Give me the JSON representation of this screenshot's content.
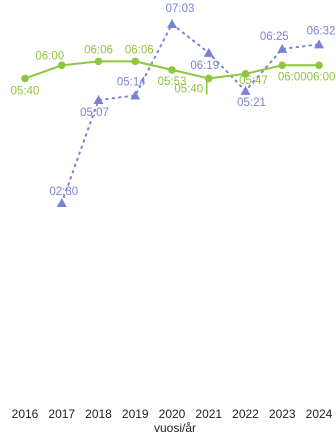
{
  "chart_data": {
    "type": "line",
    "xlabel": "vuosi/år",
    "ylabel": "",
    "categories": [
      "2016",
      "2017",
      "2018",
      "2019",
      "2020",
      "2021",
      "2022",
      "2023",
      "2024"
    ],
    "y_unit": "time (hh:mm)",
    "ylim": [
      "01:00",
      "07:30"
    ],
    "grid": false,
    "series": [
      {
        "style": "solid line with circle markers",
        "color": "#8dc63f",
        "values": [
          "05:40",
          "06:00",
          "06:06",
          "06:06",
          "05:53",
          "05:40",
          "05:47",
          "06:00",
          "06:00"
        ],
        "labels": [
          "05:40",
          "06:00",
          "06:06",
          "06:06",
          "05:53",
          "05:40",
          "05:47",
          "06:00",
          "06:00"
        ]
      },
      {
        "style": "dotted line with triangle markers",
        "color": "#7b82d4",
        "values": [
          null,
          "02:30",
          "05:07",
          "05:14",
          "07:03",
          "06:19",
          "05:21",
          "06:25",
          "06:32"
        ],
        "labels": [
          null,
          "02:30",
          "05:07",
          "05:14",
          "07:03",
          "06:19",
          "05:21",
          "06:25",
          "06:32"
        ]
      }
    ]
  }
}
